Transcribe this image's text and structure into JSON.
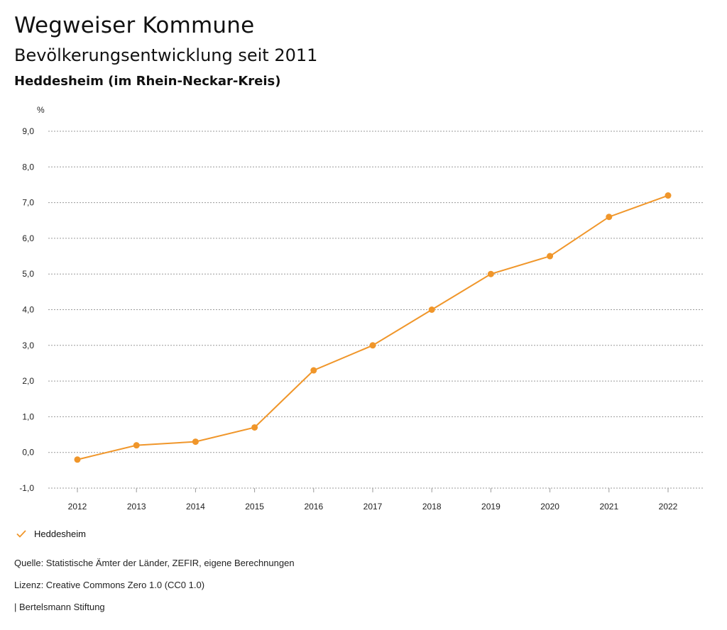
{
  "header": {
    "title": "Wegweiser Kommune",
    "subtitle": "Bevölkerungsentwicklung seit 2011",
    "region": "Heddesheim (im Rhein-Neckar-Kreis)"
  },
  "chart_data": {
    "type": "line",
    "ylabel": "%",
    "ylim": [
      -1.0,
      9.0
    ],
    "yticks": [
      "-1,0",
      "0,0",
      "1,0",
      "2,0",
      "3,0",
      "4,0",
      "5,0",
      "6,0",
      "7,0",
      "8,0",
      "9,0"
    ],
    "categories": [
      "2012",
      "2013",
      "2014",
      "2015",
      "2016",
      "2017",
      "2018",
      "2019",
      "2020",
      "2021",
      "2022"
    ],
    "series": [
      {
        "name": "Heddesheim",
        "color": "#f0962a",
        "values": [
          -0.2,
          0.2,
          0.3,
          0.7,
          2.3,
          3.0,
          4.0,
          5.0,
          5.5,
          6.6,
          7.2
        ]
      }
    ],
    "grid": true,
    "legend_position": "bottom-left"
  },
  "legend": {
    "label": "Heddesheim"
  },
  "footer": {
    "source": "Quelle: Statistische Ämter der Länder, ZEFIR, eigene Berechnungen",
    "license": "Lizenz: Creative Commons Zero 1.0 (CC0 1.0)",
    "publisher": "| Bertelsmann Stiftung"
  }
}
